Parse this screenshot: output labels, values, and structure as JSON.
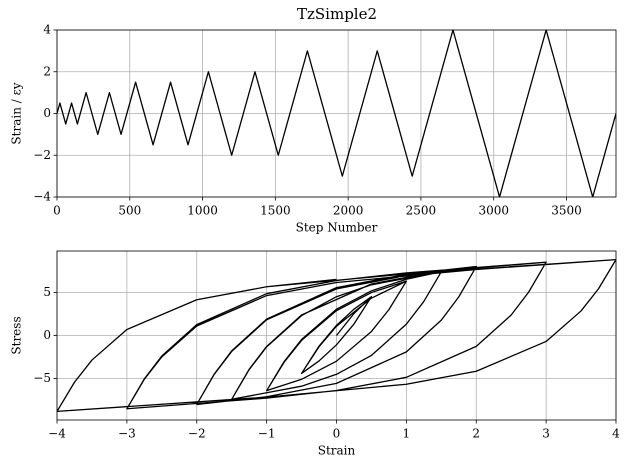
{
  "chart_data": [
    {
      "type": "line",
      "title": "TzSimple2",
      "xlabel": "Step Number",
      "ylabel": "Strain / εy",
      "x": [
        0,
        20,
        60,
        100,
        140,
        200,
        280,
        360,
        440,
        540,
        660,
        780,
        900,
        1040,
        1200,
        1360,
        1520,
        1720,
        1960,
        2200,
        2440,
        2720,
        3040,
        3360,
        3680,
        3840
      ],
      "series": [
        {
          "color": "#000000",
          "values": [
            0,
            0.5,
            -0.5,
            0.5,
            -0.5,
            1,
            -1,
            1,
            -1,
            1.5,
            -1.5,
            1.5,
            -1.5,
            2,
            -2,
            2,
            -2,
            3,
            -3,
            3,
            -3,
            4,
            -4,
            4,
            -4,
            0
          ]
        }
      ],
      "xlim": [
        0,
        3840
      ],
      "ylim": [
        -4,
        4
      ],
      "xticks": [
        0,
        500,
        1000,
        1500,
        2000,
        2500,
        3000,
        3500
      ],
      "yticks": [
        {
          "value": -4,
          "label": "−4"
        },
        {
          "value": -2,
          "label": "−2"
        },
        0,
        2,
        4
      ],
      "grid": true
    },
    {
      "type": "line",
      "xlabel": "Strain",
      "ylabel": "Stress",
      "x": [
        0,
        0.25,
        0.5,
        0.25,
        0,
        -0.25,
        -0.5,
        -0.25,
        0,
        0.25,
        0.5,
        0.25,
        0,
        -0.25,
        -0.5,
        -0.25,
        0,
        0.5,
        1,
        0.75,
        0.5,
        0,
        -0.5,
        -1,
        -0.75,
        -0.5,
        0,
        0.5,
        1,
        0.75,
        0.5,
        0,
        -0.5,
        -1,
        -0.75,
        -0.5,
        0,
        0.5,
        1,
        1.5,
        1.25,
        1,
        0.5,
        0,
        -0.5,
        -1.5,
        -1.25,
        -1,
        -0.5,
        0,
        0.5,
        1.5,
        1.25,
        1,
        0.5,
        0,
        -0.5,
        -1.5,
        -1.25,
        -1,
        -0.5,
        0.5,
        1.5,
        2,
        1.75,
        1.5,
        1,
        0,
        -1,
        -2,
        -1.75,
        -1.5,
        -1,
        0,
        1,
        2,
        1.75,
        1.5,
        1,
        0,
        -1,
        -2,
        -1.75,
        -1.5,
        -1,
        0,
        1,
        2,
        3,
        2.75,
        2.5,
        2,
        1,
        0,
        -1,
        -3,
        -2.75,
        -2.5,
        -2,
        -1,
        0,
        1,
        3,
        2.75,
        2.5,
        2,
        1,
        0,
        -1,
        -3,
        -2.75,
        -2.5,
        -2,
        -1,
        0,
        2,
        4,
        3.75,
        3.5,
        3,
        2,
        1,
        -1,
        -4,
        -3.75,
        -3.5,
        -3,
        -2,
        -1,
        1,
        4,
        3.75,
        3.5,
        3,
        2,
        1,
        -1,
        -4,
        -3.75,
        -3.5,
        -3,
        -2,
        -1,
        0
      ],
      "series": [
        {
          "color": "#000000",
          "values": [
            0,
            2.55,
            4.5,
            1.33,
            -1.08,
            -2.95,
            -4.4,
            -1.23,
            1.18,
            3.05,
            4.5,
            1.33,
            -1.08,
            -2.95,
            -4.4,
            -1.3,
            1.08,
            4.33,
            6.3,
            3.0,
            0.47,
            -2.98,
            -5.08,
            -6.4,
            -3.1,
            -0.57,
            2.88,
            4.98,
            6.3,
            3.0,
            0.47,
            -2.98,
            -5.08,
            -6.4,
            -3.03,
            -0.47,
            3.05,
            5.18,
            6.52,
            7.4,
            3.95,
            1.32,
            -2.31,
            -4.5,
            -5.88,
            -7.4,
            -3.95,
            -1.32,
            2.31,
            4.5,
            5.88,
            7.4,
            3.95,
            1.32,
            -2.31,
            -4.5,
            -5.88,
            -7.4,
            -3.92,
            -1.27,
            2.38,
            5.97,
            7.51,
            8.0,
            4.48,
            1.78,
            -1.9,
            -5.55,
            -7.1,
            -8.0,
            -4.48,
            -1.78,
            1.9,
            5.55,
            7.1,
            8.0,
            4.48,
            1.78,
            -1.9,
            -5.55,
            -7.1,
            -8.0,
            -4.5,
            -1.85,
            1.82,
            5.41,
            6.95,
            7.84,
            8.5,
            5.03,
            2.38,
            -1.26,
            -4.85,
            -6.38,
            -7.26,
            -8.5,
            -5.03,
            -2.38,
            1.26,
            4.85,
            6.38,
            7.26,
            8.5,
            5.03,
            2.38,
            -1.26,
            -4.85,
            -6.38,
            -7.26,
            -8.5,
            -5.07,
            -2.48,
            1.1,
            4.63,
            6.15,
            7.66,
            8.8,
            5.42,
            2.85,
            -0.69,
            -4.15,
            -5.65,
            -7.15,
            -8.8,
            -5.42,
            -2.85,
            0.69,
            4.15,
            5.65,
            7.15,
            8.8,
            5.42,
            2.85,
            -0.69,
            -4.15,
            -5.65,
            -7.15,
            -8.8,
            -5.42,
            -2.85,
            0.69,
            4.15,
            5.65,
            6.51
          ]
        }
      ],
      "xlim": [
        -4,
        4
      ],
      "ylim": [
        -9.8,
        9.8
      ],
      "xticks": [
        {
          "value": -4,
          "label": "−4"
        },
        {
          "value": -3,
          "label": "−3"
        },
        {
          "value": -2,
          "label": "−2"
        },
        {
          "value": -1,
          "label": "−1"
        },
        0,
        1,
        2,
        3,
        4
      ],
      "yticks": [
        {
          "value": -5,
          "label": "−5"
        },
        0,
        5
      ],
      "grid": true
    }
  ]
}
